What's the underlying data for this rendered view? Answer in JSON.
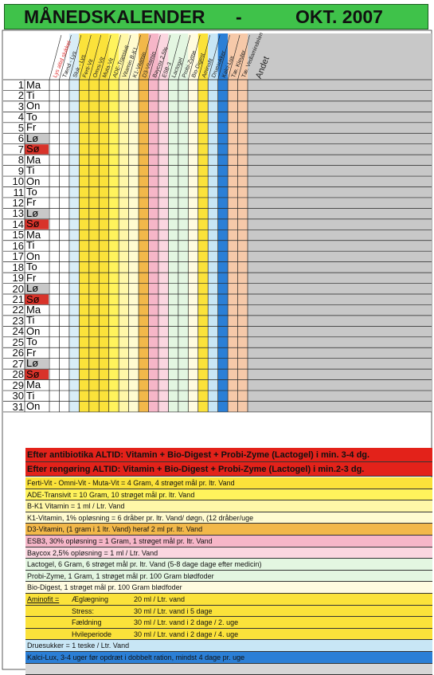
{
  "title": {
    "main": "MÅNEDSKALENDER",
    "dash": "-",
    "month": "OKT. 2007"
  },
  "columns": [
    {
      "label": "Lys altid slukket",
      "color": "#ffffff",
      "text": "red"
    },
    {
      "label": "Tænd - Lys",
      "color": "#ffffff"
    },
    {
      "label": "Sluk - Lys",
      "color": "#d8edf7"
    },
    {
      "label": "Ferti-Vit",
      "color": "#fbe23a"
    },
    {
      "label": "Omni-Vit",
      "color": "#fbe23a"
    },
    {
      "label": "Muta-Vit",
      "color": "#fbe23a"
    },
    {
      "label": "ADE-Transivit",
      "color": "#fff35c"
    },
    {
      "label": "Vitamin B-K1",
      "color": "#fff7a8"
    },
    {
      "label": "K1-Vitamin",
      "color": "#fffbd0"
    },
    {
      "label": "D3-Vitamin",
      "color": "#f2b84a"
    },
    {
      "label": "Baycox 2,5%",
      "color": "#f6b6c8"
    },
    {
      "label": "ESB-3",
      "color": "#fbd6e0"
    },
    {
      "label": "Lactogel",
      "color": "#e3f6e1"
    },
    {
      "label": "Probi-Zyme",
      "color": "#e3f6e1"
    },
    {
      "label": "Bio-Digest",
      "color": "#fffbe0"
    },
    {
      "label": "Aminofit",
      "color": "#fbe23a"
    },
    {
      "label": "Druesukker",
      "color": "#c8e6f5"
    },
    {
      "label": "Kalci-Lux",
      "color": "#2b7fd6"
    },
    {
      "label": "Tæ. Kleuter",
      "color": "#f6c9a9"
    },
    {
      "label": "Tæ. Vedlamindelen",
      "color": "#f6c9a9"
    },
    {
      "label": "Andet",
      "color": "#c8c8c8",
      "big": true
    }
  ],
  "days": [
    {
      "n": "1",
      "d": "Ma"
    },
    {
      "n": "2",
      "d": "Ti"
    },
    {
      "n": "3",
      "d": "On"
    },
    {
      "n": "4",
      "d": "To"
    },
    {
      "n": "5",
      "d": "Fr"
    },
    {
      "n": "6",
      "d": "Lø",
      "t": "sat"
    },
    {
      "n": "7",
      "d": "Sø",
      "t": "sun"
    },
    {
      "n": "8",
      "d": "Ma"
    },
    {
      "n": "9",
      "d": "Ti"
    },
    {
      "n": "10",
      "d": "On"
    },
    {
      "n": "11",
      "d": "To"
    },
    {
      "n": "12",
      "d": "Fr"
    },
    {
      "n": "13",
      "d": "Lø",
      "t": "sat"
    },
    {
      "n": "14",
      "d": "Sø",
      "t": "sun"
    },
    {
      "n": "15",
      "d": "Ma"
    },
    {
      "n": "16",
      "d": "Ti"
    },
    {
      "n": "17",
      "d": "On"
    },
    {
      "n": "18",
      "d": "To"
    },
    {
      "n": "19",
      "d": "Fr"
    },
    {
      "n": "20",
      "d": "Lø",
      "t": "sat"
    },
    {
      "n": "21",
      "d": "Sø",
      "t": "sun"
    },
    {
      "n": "22",
      "d": "Ma"
    },
    {
      "n": "23",
      "d": "Ti"
    },
    {
      "n": "24",
      "d": "On"
    },
    {
      "n": "25",
      "d": "To"
    },
    {
      "n": "26",
      "d": "Fr"
    },
    {
      "n": "27",
      "d": "Lø",
      "t": "sat"
    },
    {
      "n": "28",
      "d": "Sø",
      "t": "sun"
    },
    {
      "n": "29",
      "d": "Ma"
    },
    {
      "n": "30",
      "d": "Ti"
    },
    {
      "n": "31",
      "d": "On"
    }
  ],
  "warnings": [
    "Efter antibiotika ALTID: Vitamin + Bio-Digest + Probi-Zyme (Lactogel) i min. 3-4 dg.",
    "Efter rengøring  ALTID: Vitamin + Bio-Digest + Probi-Zyme (Lactogel) i min.2-3 dg."
  ],
  "notes": [
    {
      "text": "Ferti-Vit - Omni-Vit - Muta-Vit = 4 Gram, 4 strøget mål pr. ltr. Vand",
      "color": "#fbe23a"
    },
    {
      "text": "ADE-Transivit = 10 Gram, 10 strøget mål pr. ltr. Vand",
      "color": "#fff35c"
    },
    {
      "text": "B-K1 Vitamin = 1 ml / Ltr. Vand",
      "color": "#fff7a8"
    },
    {
      "text": "K1-Vitamin, 1% opløsning = 6 dråber pr. ltr. Vand/ døgn, (12 dråber/uge",
      "color": "#fffbd0"
    },
    {
      "text": "D3-Vitamin, (1 gram i 1 ltr. Vand) heraf 2 ml pr. ltr. Vand",
      "color": "#f2b84a"
    },
    {
      "text": "ESB3, 30% opløsning = 1 Gram, 1 strøget mål pr. ltr. Vand",
      "color": "#f6b6c8"
    },
    {
      "text": "Baycox 2,5% opløsning = 1 ml / Ltr. Vand",
      "color": "#fbd6e0"
    },
    {
      "text": "Lactogel, 6 Gram, 6 strøget mål pr. ltr. Vand (5-8 dage dage efter medicin)",
      "color": "#e3f6e1"
    },
    {
      "text": "Probi-Zyme, 1 Gram, 1 strøget mål pr. 100 Gram blødfoder",
      "color": "#e3f6e1"
    },
    {
      "text": "Bio-Digest, 1 strøget mål pr. 100 Gram blødfoder",
      "color": "#fffbe0"
    }
  ],
  "aminofit": {
    "label": "Aminofit =",
    "rows": [
      {
        "phase": "Æglægning",
        "dose": "20 ml / Ltr. vand",
        "extra": ""
      },
      {
        "phase": "Stress:",
        "dose": "30 ml / Ltr. vand i 5 dage",
        "extra": ""
      },
      {
        "phase": "Fældning",
        "dose": "30 ml / Ltr. vand i 2 dage / 2. uge",
        "extra": ""
      },
      {
        "phase": "Hvileperiode",
        "dose": "30 ml / Ltr. vand i 2 dage / 4. uge",
        "extra": ""
      }
    ],
    "color": "#fbe23a"
  },
  "tail_notes": [
    {
      "text": "Druesukker = 1 teske / Ltr. Vand",
      "color": "#c8e6f5"
    },
    {
      "text": "Kalci-Lux, 3-4 uger før opdræt i dobbelt ration, mindst 4 dage pr. uge",
      "color": "#2b7fd6"
    }
  ],
  "colors": {
    "title_bg": "#3fc24a",
    "sunday": "#d8332a",
    "saturday": "#c8c8c8",
    "grid_line": "#222222",
    "andet": "#c8c8c8"
  }
}
